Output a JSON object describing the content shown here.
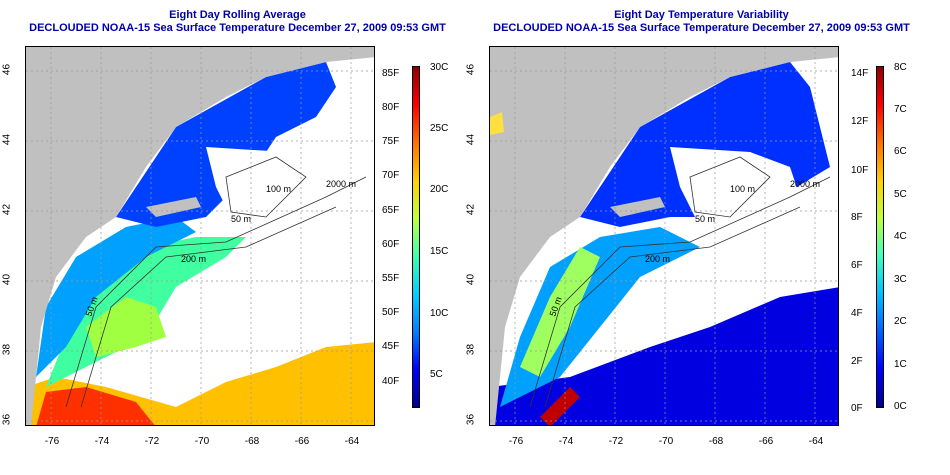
{
  "panels": [
    {
      "title": "Eight Day Rolling Average",
      "subtitle": "DECLOUDED NOAA-15 Sea Surface Temperature December 27, 2009 09:53 GMT",
      "colorbar": {
        "gradient": [
          "#00008c",
          "#0000ff",
          "#0080ff",
          "#00d0ff",
          "#40ffb0",
          "#c0ff40",
          "#ffd000",
          "#ff7000",
          "#ff0000",
          "#900000"
        ],
        "left_labels": [
          "85F",
          "80F",
          "75F",
          "70F",
          "65F",
          "60F",
          "55F",
          "50F",
          "45F",
          "40F"
        ],
        "right_labels": [
          "30C",
          "25C",
          "20C",
          "15C",
          "10C",
          "5C"
        ]
      },
      "contour_labels": [
        "100 m",
        "2000 m",
        "50 m",
        "200 m",
        "50 m"
      ]
    },
    {
      "title": "Eight Day Temperature Variability",
      "subtitle": "DECLOUDED NOAA-15 Sea Surface Temperature December 27, 2009 09:53 GMT",
      "colorbar": {
        "gradient": [
          "#00008c",
          "#0000ff",
          "#0060ff",
          "#00c0ff",
          "#40ffc0",
          "#c0ff40",
          "#ffd000",
          "#ff7000",
          "#ff0000",
          "#900000"
        ],
        "left_labels": [
          "14F",
          "12F",
          "10F",
          "8F",
          "6F",
          "4F",
          "2F",
          "0F"
        ],
        "right_labels": [
          "8C",
          "7C",
          "6C",
          "5C",
          "4C",
          "3C",
          "2C",
          "1C",
          "0C"
        ]
      },
      "contour_labels": [
        "100 m",
        "2000 m",
        "50 m",
        "200 m",
        "50 m"
      ]
    }
  ],
  "axes": {
    "x_ticks": [
      "-76",
      "-74",
      "-72",
      "-70",
      "-68",
      "-66",
      "-64"
    ],
    "y_ticks": [
      "46",
      "44",
      "42",
      "40",
      "38",
      "36"
    ]
  },
  "colors": {
    "land": "#c0c0c0",
    "title": "#0000aa"
  }
}
